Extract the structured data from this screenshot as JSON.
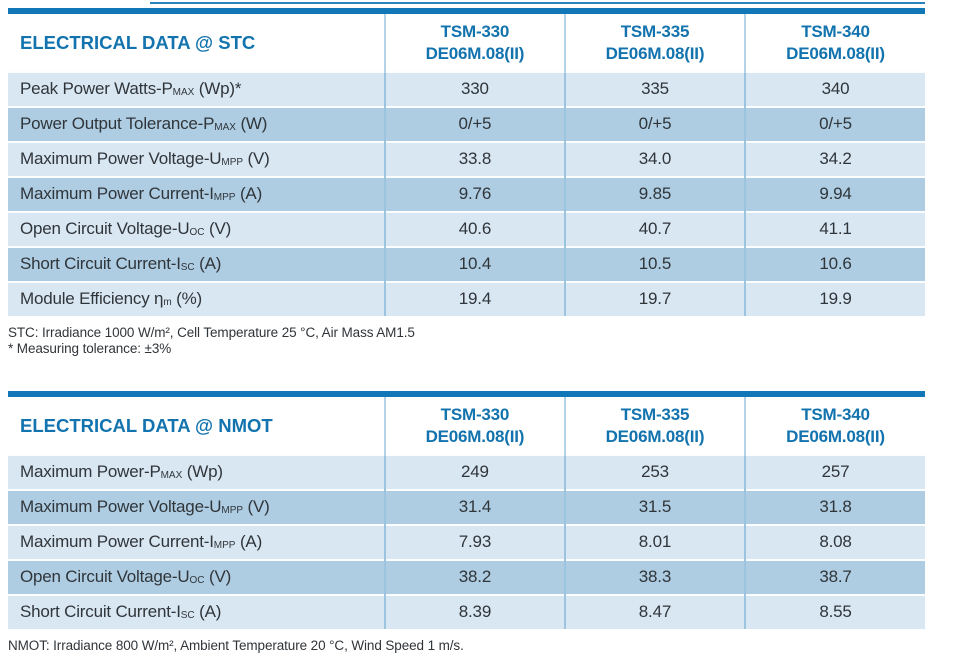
{
  "colors": {
    "accent_blue": "#1277b6",
    "title_blue": "#1273ae",
    "row_light": "#d9e7f3",
    "row_dark": "#aecde2",
    "sep_header": "#b4d3e7",
    "sep_body": "#9cc4de",
    "text_dark": "#30353a"
  },
  "tables": [
    {
      "title": "ELECTRICAL DATA @ STC",
      "columns": [
        {
          "model": "TSM-330",
          "variant": "DE06M.08(II)"
        },
        {
          "model": "TSM-335",
          "variant": "DE06M.08(II)"
        },
        {
          "model": "TSM-340",
          "variant": "DE06M.08(II)"
        }
      ],
      "rows": [
        {
          "label_pre": "Peak Power Watts-P",
          "label_sub": "MAX",
          "label_post": " (Wp)*",
          "values": [
            "330",
            "335",
            "340"
          ]
        },
        {
          "label_pre": "Power Output Tolerance-P",
          "label_sub": "MAX",
          "label_post": " (W)",
          "values": [
            "0/+5",
            "0/+5",
            "0/+5"
          ]
        },
        {
          "label_pre": "Maximum Power Voltage-U",
          "label_sub": "MPP",
          "label_post": " (V)",
          "values": [
            "33.8",
            "34.0",
            "34.2"
          ]
        },
        {
          "label_pre": "Maximum Power Current-I",
          "label_sub": "MPP",
          "label_post": " (A)",
          "values": [
            "9.76",
            "9.85",
            "9.94"
          ]
        },
        {
          "label_pre": "Open Circuit Voltage-U",
          "label_sub": "OC",
          "label_post": " (V)",
          "values": [
            "40.6",
            "40.7",
            "41.1"
          ]
        },
        {
          "label_pre": "Short Circuit Current-I",
          "label_sub": "SC",
          "label_post": " (A)",
          "values": [
            "10.4",
            "10.5",
            "10.6"
          ]
        },
        {
          "label_pre": "Module Efficiency η",
          "label_sub": "m",
          "label_post": " (%)",
          "values": [
            "19.4",
            "19.7",
            "19.9"
          ]
        }
      ],
      "footnotes": [
        "STC: Irradiance 1000 W/m², Cell Temperature 25 °C, Air Mass AM1.5",
        "* Measuring tolerance: ±3%"
      ]
    },
    {
      "title": "ELECTRICAL DATA @ NMOT",
      "columns": [
        {
          "model": "TSM-330",
          "variant": "DE06M.08(II)"
        },
        {
          "model": "TSM-335",
          "variant": "DE06M.08(II)"
        },
        {
          "model": "TSM-340",
          "variant": "DE06M.08(II)"
        }
      ],
      "rows": [
        {
          "label_pre": "Maximum Power-P",
          "label_sub": "MAX",
          "label_post": " (Wp)",
          "values": [
            "249",
            "253",
            "257"
          ]
        },
        {
          "label_pre": "Maximum Power Voltage-U",
          "label_sub": "MPP",
          "label_post": " (V)",
          "values": [
            "31.4",
            "31.5",
            "31.8"
          ]
        },
        {
          "label_pre": "Maximum Power Current-I",
          "label_sub": "MPP",
          "label_post": " (A)",
          "values": [
            "7.93",
            "8.01",
            "8.08"
          ]
        },
        {
          "label_pre": "Open Circuit Voltage-U",
          "label_sub": "OC",
          "label_post": " (V)",
          "values": [
            "38.2",
            "38.3",
            "38.7"
          ]
        },
        {
          "label_pre": "Short Circuit Current-I",
          "label_sub": "SC",
          "label_post": " (A)",
          "values": [
            "8.39",
            "8.47",
            "8.55"
          ]
        }
      ],
      "footnotes": [
        "NMOT: Irradiance 800 W/m², Ambient Temperature 20 °C, Wind Speed 1 m/s."
      ]
    }
  ]
}
